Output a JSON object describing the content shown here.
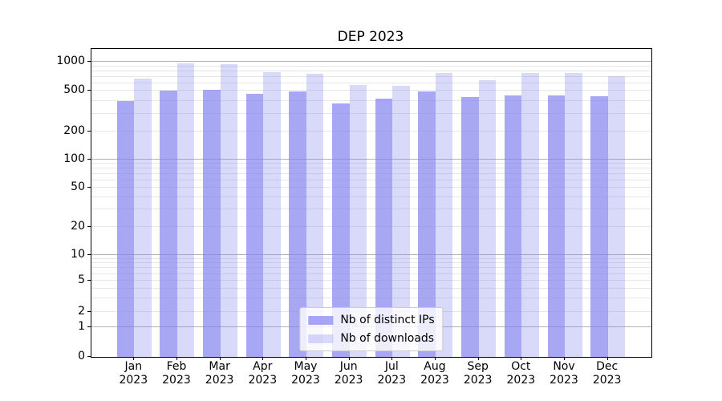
{
  "title": "DEP 2023",
  "colors": {
    "bar_base": "#8282f0",
    "series1_rgba": "rgba(130,130,240,0.7)",
    "series2_rgba": "rgba(130,130,240,0.3)",
    "major_grid": "#b3b3b3",
    "minor_grid": "#e7e7e7",
    "spine": "#000000",
    "legend_border": "#cccccc"
  },
  "legend": {
    "items": [
      {
        "label": "Nb of distinct IPs"
      },
      {
        "label": "Nb of downloads"
      }
    ]
  },
  "chart_data": {
    "type": "bar",
    "title": "DEP 2023",
    "xlabel": "",
    "ylabel": "",
    "categories": [
      "Jan\n2023",
      "Feb\n2023",
      "Mar\n2023",
      "Apr\n2023",
      "May\n2023",
      "Jun\n2023",
      "Jul\n2023",
      "Aug\n2023",
      "Sep\n2023",
      "Oct\n2023",
      "Nov\n2023",
      "Dec\n2023"
    ],
    "series": [
      {
        "name": "Nb of distinct IPs",
        "color": "#8282f0",
        "opacity": 0.7,
        "values": [
          400,
          500,
          510,
          465,
          495,
          380,
          420,
          495,
          435,
          450,
          450,
          445
        ]
      },
      {
        "name": "Nb of downloads",
        "color": "#8282f0",
        "opacity": 0.3,
        "values": [
          670,
          955,
          940,
          780,
          755,
          575,
          565,
          770,
          650,
          760,
          760,
          710
        ]
      }
    ],
    "yscale": "symlog",
    "y_ticks": [
      0,
      1,
      2,
      5,
      10,
      20,
      50,
      100,
      200,
      500,
      1000
    ],
    "y_major_gridlines": [
      1,
      10,
      100,
      1000
    ],
    "y_minor_gridlines": [
      2,
      3,
      4,
      5,
      6,
      7,
      8,
      9,
      20,
      30,
      40,
      50,
      60,
      70,
      80,
      90,
      200,
      300,
      400,
      500,
      600,
      700,
      800,
      900
    ],
    "ylim": [
      0,
      1371
    ],
    "grid": true,
    "legend_position": "lower center"
  }
}
